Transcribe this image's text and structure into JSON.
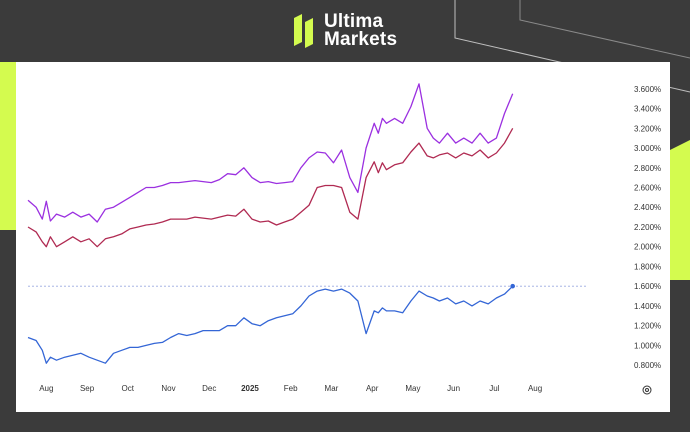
{
  "brand": {
    "line1": "Ultima",
    "line2": "Markets",
    "colors": {
      "accent": "#d4fb4f",
      "background": "#3b3b3b",
      "panel": "#ffffff"
    },
    "icon": "ultima-logo-icon"
  },
  "chart_data": {
    "type": "line",
    "title": "",
    "xlabel": "",
    "ylabel": "",
    "ylim": [
      0.7,
      3.75
    ],
    "y_ticks": [
      "0.800%",
      "1.000%",
      "1.200%",
      "1.400%",
      "1.600%",
      "1.800%",
      "2.000%",
      "2.200%",
      "2.400%",
      "2.600%",
      "2.800%",
      "3.000%",
      "3.200%",
      "3.400%",
      "3.600%"
    ],
    "y_tick_values": [
      0.8,
      1.0,
      1.2,
      1.4,
      1.6,
      1.8,
      2.0,
      2.2,
      2.4,
      2.6,
      2.8,
      3.0,
      3.2,
      3.4,
      3.6
    ],
    "x_ticks": [
      {
        "label": "Aug",
        "month": 0.45,
        "bold": false
      },
      {
        "label": "Sep",
        "month": 1.45,
        "bold": false
      },
      {
        "label": "Oct",
        "month": 2.45,
        "bold": false
      },
      {
        "label": "Nov",
        "month": 3.45,
        "bold": false
      },
      {
        "label": "Dec",
        "month": 4.45,
        "bold": false
      },
      {
        "label": "2025",
        "month": 5.45,
        "bold": true
      },
      {
        "label": "Feb",
        "month": 6.45,
        "bold": false
      },
      {
        "label": "Mar",
        "month": 7.45,
        "bold": false
      },
      {
        "label": "Apr",
        "month": 8.45,
        "bold": false
      },
      {
        "label": "May",
        "month": 9.45,
        "bold": false
      },
      {
        "label": "Jun",
        "month": 10.45,
        "bold": false
      },
      {
        "label": "Jul",
        "month": 11.45,
        "bold": false
      },
      {
        "label": "Aug",
        "month": 12.45,
        "bold": false
      }
    ],
    "x_range": [
      0,
      13.7
    ],
    "reference_line": 1.6,
    "settings_icon": "gear-icon",
    "series": [
      {
        "color": "#9b30e0",
        "x": [
          0.0,
          0.2,
          0.35,
          0.45,
          0.55,
          0.7,
          0.9,
          1.1,
          1.3,
          1.5,
          1.7,
          1.9,
          2.1,
          2.3,
          2.5,
          2.7,
          2.9,
          3.1,
          3.3,
          3.5,
          3.7,
          3.9,
          4.1,
          4.3,
          4.5,
          4.7,
          4.9,
          5.1,
          5.3,
          5.5,
          5.7,
          5.9,
          6.1,
          6.3,
          6.5,
          6.7,
          6.9,
          7.1,
          7.3,
          7.5,
          7.7,
          7.9,
          8.1,
          8.3,
          8.5,
          8.6,
          8.7,
          8.8,
          9.0,
          9.2,
          9.4,
          9.6,
          9.8,
          9.95,
          10.1,
          10.3,
          10.5,
          10.7,
          10.9,
          11.1,
          11.3,
          11.5,
          11.7,
          11.9
        ],
        "values": [
          2.47,
          2.4,
          2.28,
          2.46,
          2.26,
          2.33,
          2.3,
          2.35,
          2.3,
          2.33,
          2.25,
          2.38,
          2.4,
          2.45,
          2.5,
          2.55,
          2.6,
          2.6,
          2.62,
          2.65,
          2.65,
          2.66,
          2.67,
          2.66,
          2.65,
          2.68,
          2.74,
          2.73,
          2.8,
          2.7,
          2.65,
          2.66,
          2.64,
          2.65,
          2.66,
          2.8,
          2.9,
          2.96,
          2.95,
          2.85,
          2.98,
          2.7,
          2.55,
          3.0,
          3.25,
          3.15,
          3.3,
          3.25,
          3.3,
          3.25,
          3.42,
          3.65,
          3.2,
          3.1,
          3.05,
          3.15,
          3.05,
          3.1,
          3.05,
          3.15,
          3.05,
          3.1,
          3.35,
          3.55
        ]
      },
      {
        "color": "#b02a52",
        "x": [
          0.0,
          0.2,
          0.35,
          0.45,
          0.55,
          0.7,
          0.9,
          1.1,
          1.3,
          1.5,
          1.7,
          1.9,
          2.1,
          2.3,
          2.5,
          2.7,
          2.9,
          3.1,
          3.3,
          3.5,
          3.7,
          3.9,
          4.1,
          4.3,
          4.5,
          4.7,
          4.9,
          5.1,
          5.3,
          5.5,
          5.7,
          5.9,
          6.1,
          6.3,
          6.5,
          6.7,
          6.9,
          7.1,
          7.3,
          7.5,
          7.7,
          7.9,
          8.1,
          8.3,
          8.5,
          8.6,
          8.7,
          8.8,
          9.0,
          9.2,
          9.4,
          9.6,
          9.8,
          9.95,
          10.1,
          10.3,
          10.5,
          10.7,
          10.9,
          11.1,
          11.3,
          11.5,
          11.7,
          11.9
        ],
        "values": [
          2.2,
          2.15,
          2.05,
          2.0,
          2.1,
          2.0,
          2.05,
          2.1,
          2.05,
          2.08,
          2.0,
          2.08,
          2.1,
          2.13,
          2.18,
          2.2,
          2.22,
          2.23,
          2.25,
          2.28,
          2.28,
          2.28,
          2.3,
          2.29,
          2.28,
          2.3,
          2.32,
          2.31,
          2.38,
          2.28,
          2.25,
          2.26,
          2.22,
          2.25,
          2.28,
          2.35,
          2.42,
          2.6,
          2.62,
          2.62,
          2.6,
          2.35,
          2.28,
          2.7,
          2.86,
          2.75,
          2.85,
          2.78,
          2.83,
          2.85,
          2.96,
          3.05,
          2.92,
          2.9,
          2.93,
          2.95,
          2.9,
          2.95,
          2.92,
          2.98,
          2.9,
          2.95,
          3.05,
          3.2
        ]
      },
      {
        "color": "#3466d6",
        "x": [
          0.0,
          0.2,
          0.35,
          0.45,
          0.55,
          0.7,
          0.9,
          1.1,
          1.3,
          1.5,
          1.7,
          1.9,
          2.1,
          2.3,
          2.5,
          2.7,
          2.9,
          3.1,
          3.3,
          3.5,
          3.7,
          3.9,
          4.1,
          4.3,
          4.5,
          4.7,
          4.9,
          5.1,
          5.3,
          5.5,
          5.7,
          5.9,
          6.1,
          6.3,
          6.5,
          6.7,
          6.9,
          7.1,
          7.3,
          7.5,
          7.7,
          7.9,
          8.1,
          8.3,
          8.5,
          8.6,
          8.7,
          8.8,
          9.0,
          9.2,
          9.4,
          9.6,
          9.8,
          9.95,
          10.1,
          10.3,
          10.5,
          10.7,
          10.9,
          11.1,
          11.3,
          11.5,
          11.7,
          11.9
        ],
        "values": [
          1.08,
          1.05,
          0.95,
          0.82,
          0.88,
          0.85,
          0.88,
          0.9,
          0.92,
          0.88,
          0.85,
          0.82,
          0.92,
          0.95,
          0.98,
          0.98,
          1.0,
          1.02,
          1.03,
          1.08,
          1.12,
          1.1,
          1.12,
          1.15,
          1.15,
          1.15,
          1.2,
          1.2,
          1.28,
          1.22,
          1.2,
          1.25,
          1.28,
          1.3,
          1.32,
          1.4,
          1.5,
          1.55,
          1.57,
          1.55,
          1.57,
          1.53,
          1.45,
          1.12,
          1.35,
          1.33,
          1.38,
          1.35,
          1.35,
          1.33,
          1.45,
          1.55,
          1.5,
          1.48,
          1.45,
          1.48,
          1.42,
          1.45,
          1.4,
          1.45,
          1.42,
          1.48,
          1.52,
          1.6
        ]
      }
    ]
  }
}
